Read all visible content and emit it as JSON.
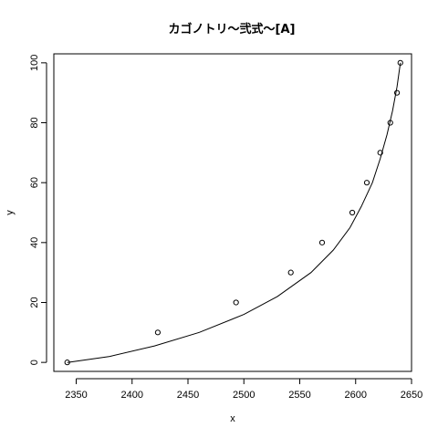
{
  "chart_data": {
    "type": "scatter",
    "title": "カゴノトリ～弐式～[A]",
    "xlabel": "x",
    "ylabel": "y",
    "xlim": [
      2330,
      2650
    ],
    "ylim": [
      -3,
      103
    ],
    "xticks": [
      2350,
      2400,
      2450,
      2500,
      2550,
      2600,
      2650
    ],
    "yticks": [
      0,
      20,
      40,
      60,
      80,
      100
    ],
    "grid": false,
    "points": [
      {
        "x": 2342,
        "y": 0
      },
      {
        "x": 2423,
        "y": 10
      },
      {
        "x": 2493,
        "y": 20
      },
      {
        "x": 2542,
        "y": 30
      },
      {
        "x": 2570,
        "y": 40
      },
      {
        "x": 2597,
        "y": 50
      },
      {
        "x": 2610,
        "y": 60
      },
      {
        "x": 2622,
        "y": 70
      },
      {
        "x": 2631,
        "y": 80
      },
      {
        "x": 2637,
        "y": 90
      },
      {
        "x": 2640,
        "y": 100
      }
    ],
    "fit_curve": {
      "type": "line",
      "x": [
        2342,
        2380,
        2420,
        2460,
        2500,
        2530,
        2560,
        2580,
        2595,
        2605,
        2615,
        2622,
        2628,
        2633,
        2637,
        2640
      ],
      "y": [
        0,
        2,
        5.5,
        10,
        16,
        22,
        30,
        37.5,
        45,
        52,
        60,
        68,
        76,
        84,
        92,
        100
      ]
    }
  }
}
